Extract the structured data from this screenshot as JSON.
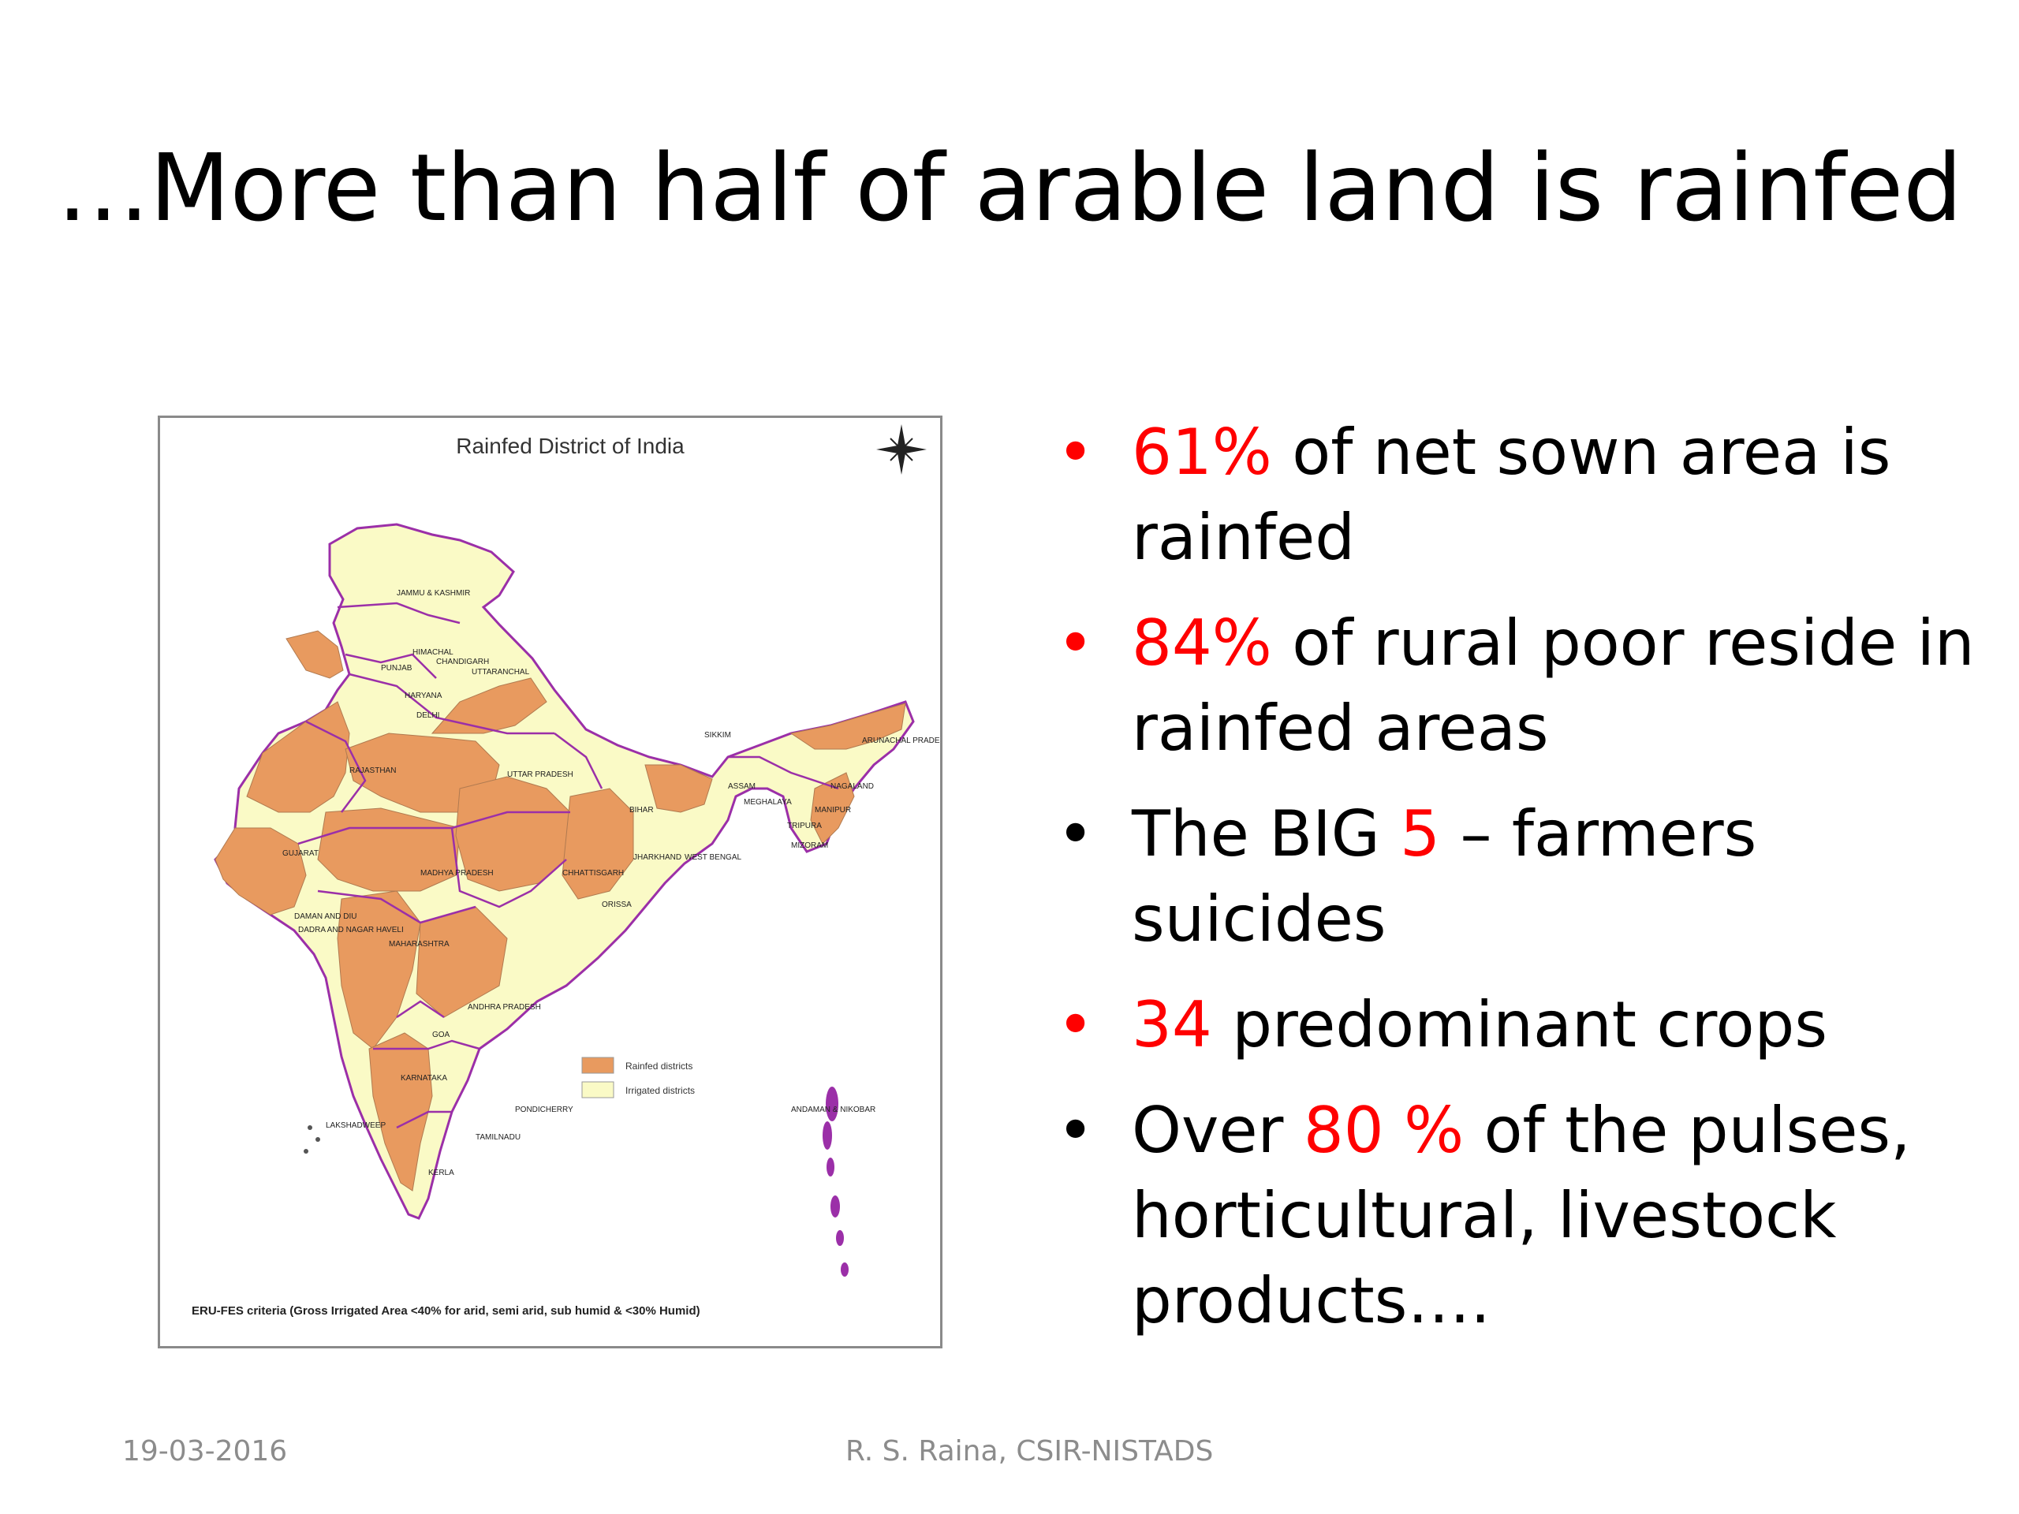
{
  "slide": {
    "title": "…More than half of arable land is rainfed"
  },
  "map": {
    "title": "Rainfed District of India",
    "legend": [
      {
        "label": "Rainfed districts",
        "color": "#e89a5f"
      },
      {
        "label": "Irrigated districts",
        "color": "#fafac6"
      }
    ],
    "criteria": "ERU-FES criteria (Gross Irrigated Area <40% for arid, semi arid, sub humid & <30% Humid)",
    "state_labels": [
      "JAMMU & KASHMIR",
      "HIMACHAL",
      "PUNJAB",
      "CHANDIGARH",
      "UTTARANCHAL",
      "HARYANA",
      "DELHI",
      "RAJASTHAN",
      "UTTAR PRADESH",
      "SIKKIM",
      "ARUNACHAL PRADESH",
      "ASSAM",
      "NAGALAND",
      "MEGHALAYA",
      "BIHAR",
      "MANIPUR",
      "TRIPURA",
      "MIZORAM",
      "JHARKHAND",
      "WEST BENGAL",
      "GUJARAT",
      "MADHYA PRADESH",
      "CHHATTISGARH",
      "ORISSA",
      "DAMAN AND DIU",
      "DADRA AND NAGAR HAVELI",
      "MAHARASHTRA",
      "ANDHRA PRADESH",
      "GOA",
      "KARNATAKA",
      "PONDICHERRY",
      "LAKSHADWEEP",
      "TAMILNADU",
      "KERLA",
      "ANDAMAN & NIKOBAR"
    ]
  },
  "bullets": [
    {
      "highlight": "61%",
      "text": " of net sown area is rainfed",
      "dot_color": "#ff0000"
    },
    {
      "highlight": "84%",
      "text": " of rural poor reside in rainfed areas",
      "dot_color": "#ff0000"
    },
    {
      "before": "The BIG ",
      "highlight": "5",
      "text": " – farmers suicides",
      "dot_color": "#000000"
    },
    {
      "highlight": "34",
      "text": " predominant crops",
      "dot_color": "#ff0000"
    },
    {
      "before": "Over ",
      "highlight": "80 %",
      "text": " of the pulses, horticultural, livestock products….",
      "dot_color": "#000000"
    }
  ],
  "footer": {
    "date": "19-03-2016",
    "author": "R. S. Raina, CSIR-NISTADS"
  }
}
